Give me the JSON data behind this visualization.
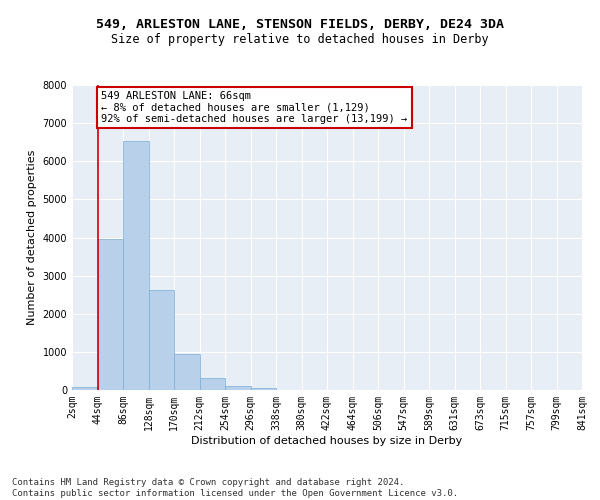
{
  "title_line1": "549, ARLESTON LANE, STENSON FIELDS, DERBY, DE24 3DA",
  "title_line2": "Size of property relative to detached houses in Derby",
  "xlabel": "Distribution of detached houses by size in Derby",
  "ylabel": "Number of detached properties",
  "bar_values": [
    75,
    3950,
    6520,
    2620,
    950,
    320,
    110,
    65,
    0,
    0,
    0,
    0,
    0,
    0,
    0,
    0,
    0,
    0,
    0,
    0
  ],
  "bar_labels": [
    "2sqm",
    "44sqm",
    "86sqm",
    "128sqm",
    "170sqm",
    "212sqm",
    "254sqm",
    "296sqm",
    "338sqm",
    "380sqm",
    "422sqm",
    "464sqm",
    "506sqm",
    "547sqm",
    "589sqm",
    "631sqm",
    "673sqm",
    "715sqm",
    "757sqm",
    "799sqm",
    "841sqm"
  ],
  "bar_color": "#b8d0ea",
  "bar_edge_color": "#7aaed6",
  "vline_x": 1,
  "vline_color": "#cc0000",
  "annotation_text": "549 ARLESTON LANE: 66sqm\n← 8% of detached houses are smaller (1,129)\n92% of semi-detached houses are larger (13,199) →",
  "annotation_box_color": "#ffffff",
  "annotation_box_edge": "#cc0000",
  "ylim": [
    0,
    8000
  ],
  "yticks": [
    0,
    1000,
    2000,
    3000,
    4000,
    5000,
    6000,
    7000,
    8000
  ],
  "background_color": "#e8eef5",
  "grid_color": "#ffffff",
  "footer_text": "Contains HM Land Registry data © Crown copyright and database right 2024.\nContains public sector information licensed under the Open Government Licence v3.0.",
  "title_fontsize": 9.5,
  "subtitle_fontsize": 8.5,
  "axis_label_fontsize": 8,
  "tick_fontsize": 7,
  "annotation_fontsize": 7.5,
  "footer_fontsize": 6.5
}
